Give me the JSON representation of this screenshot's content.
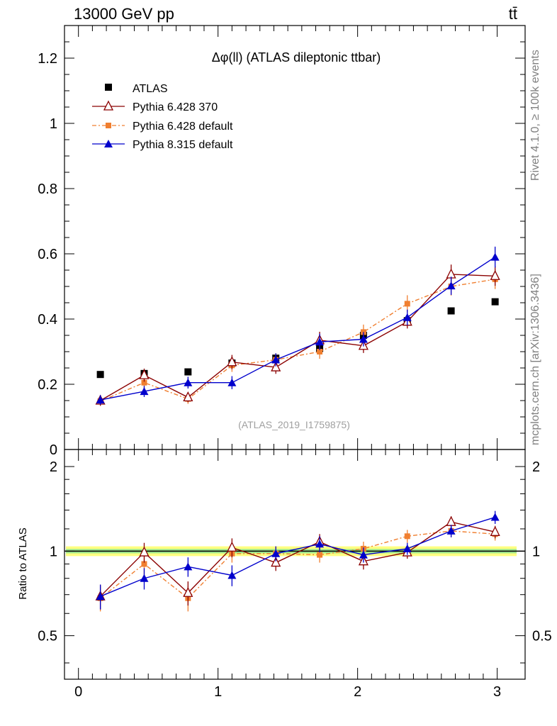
{
  "header": {
    "energy_label": "13000 GeV pp",
    "process_label": "tt̄"
  },
  "side_labels": {
    "rivet": "Rivet 4.1.0, ≥ 100k events",
    "mcplots": "mcplots.cern.ch [arXiv:1306.3436]"
  },
  "analysis_tag": "(ATLAS_2019_I1759875)",
  "colors": {
    "atlas": "#000000",
    "py6_370": "#8b0000",
    "py6_default": "#f07f30",
    "py8_default": "#0000cc",
    "band_outer": "#ffff80",
    "band_inner": "#a0e890"
  },
  "chart_data": [
    {
      "type": "scatter",
      "title": "Δφ(ll) (ATLAS dileptonic ttbar)",
      "xlabel": "",
      "ylabel": "",
      "xlim": [
        -0.1,
        3.2
      ],
      "ylim": [
        0,
        1.3
      ],
      "y_ticks": [
        0,
        0.2,
        0.4,
        0.6,
        0.8,
        1,
        1.2
      ],
      "y_tick_labels": [
        "0",
        "0.2",
        "0.4",
        "0.6",
        "0.8",
        "1",
        "1.2"
      ],
      "x": [
        0.157,
        0.471,
        0.785,
        1.1,
        1.414,
        1.728,
        2.042,
        2.356,
        2.67,
        2.985
      ],
      "series": [
        {
          "name": "ATLAS",
          "marker": "square",
          "values": [
            0.23,
            0.233,
            0.238,
            0.265,
            0.28,
            0.31,
            0.35,
            0.395,
            0.425,
            0.453
          ],
          "errors": [
            0.004,
            0.004,
            0.004,
            0.004,
            0.004,
            0.004,
            0.004,
            0.004,
            0.004,
            0.004
          ]
        },
        {
          "name": "Pythia 6.428 370",
          "marker": "triangle-open",
          "values": [
            0.15,
            0.228,
            0.16,
            0.268,
            0.252,
            0.335,
            0.318,
            0.392,
            0.537,
            0.532
          ],
          "errors": [
            0.015,
            0.02,
            0.015,
            0.022,
            0.02,
            0.026,
            0.022,
            0.021,
            0.03,
            0.03
          ]
        },
        {
          "name": "Pythia 6.428 default",
          "marker": "square-small",
          "values": [
            0.148,
            0.205,
            0.155,
            0.258,
            0.275,
            0.3,
            0.36,
            0.447,
            0.5,
            0.522
          ],
          "errors": [
            0.015,
            0.02,
            0.015,
            0.02,
            0.02,
            0.022,
            0.023,
            0.026,
            0.028,
            0.03
          ]
        },
        {
          "name": "Pythia 8.315 default",
          "marker": "triangle-filled",
          "values": [
            0.152,
            0.178,
            0.205,
            0.205,
            0.275,
            0.33,
            0.338,
            0.405,
            0.502,
            0.59
          ],
          "errors": [
            0.015,
            0.017,
            0.018,
            0.02,
            0.02,
            0.025,
            0.022,
            0.024,
            0.028,
            0.032
          ]
        }
      ]
    },
    {
      "type": "scatter",
      "title": "",
      "xlabel": "",
      "ylabel": "Ratio to ATLAS",
      "xlim": [
        -0.1,
        3.2
      ],
      "ylim": [
        0.35,
        2.3
      ],
      "y_ticks": [
        0.5,
        1,
        2
      ],
      "y_tick_labels": [
        "0.5",
        "1",
        "2"
      ],
      "x_ticks": [
        0,
        1,
        2,
        3
      ],
      "x_tick_labels": [
        "0",
        "1",
        "2",
        "3"
      ],
      "x": [
        0.157,
        0.471,
        0.785,
        1.1,
        1.414,
        1.728,
        2.042,
        2.356,
        2.67,
        2.985
      ],
      "band": {
        "outer": 0.04,
        "inner": 0.018
      },
      "series": [
        {
          "name": "Pythia 6.428 370",
          "marker": "triangle-open",
          "values": [
            0.69,
            0.99,
            0.71,
            1.03,
            0.91,
            1.08,
            0.92,
            0.99,
            1.27,
            1.17
          ],
          "errors": [
            0.07,
            0.08,
            0.07,
            0.08,
            0.06,
            0.07,
            0.06,
            0.05,
            0.06,
            0.06
          ]
        },
        {
          "name": "Pythia 6.428 default",
          "marker": "square-small",
          "values": [
            0.68,
            0.9,
            0.68,
            0.98,
            0.98,
            0.97,
            1.02,
            1.13,
            1.18,
            1.15
          ],
          "errors": [
            0.07,
            0.08,
            0.07,
            0.07,
            0.06,
            0.06,
            0.06,
            0.06,
            0.06,
            0.06
          ]
        },
        {
          "name": "Pythia 8.315 default",
          "marker": "triangle-filled",
          "values": [
            0.69,
            0.8,
            0.88,
            0.82,
            0.98,
            1.06,
            0.97,
            1.02,
            1.18,
            1.32
          ],
          "errors": [
            0.07,
            0.07,
            0.07,
            0.07,
            0.06,
            0.07,
            0.06,
            0.05,
            0.06,
            0.07
          ]
        }
      ]
    }
  ]
}
